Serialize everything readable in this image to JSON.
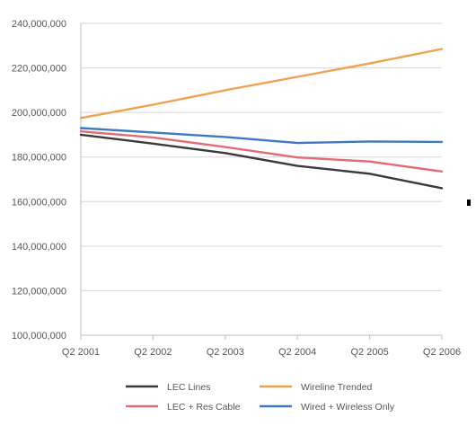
{
  "chart_data": {
    "type": "line",
    "title": "",
    "xlabel": "",
    "ylabel": "",
    "categories": [
      "Q2 2001",
      "Q2 2002",
      "Q2 2003",
      "Q2 2004",
      "Q2 2005",
      "Q2 2006"
    ],
    "ylim": [
      100000000,
      240000000
    ],
    "yticks": [
      {
        "value": 100000000,
        "label": "100,000,000"
      },
      {
        "value": 120000000,
        "label": "120,000,000"
      },
      {
        "value": 140000000,
        "label": "140,000,000"
      },
      {
        "value": 160000000,
        "label": "160,000,000"
      },
      {
        "value": 180000000,
        "label": "180,000,000"
      },
      {
        "value": 200000000,
        "label": "200,000,000"
      },
      {
        "value": 220000000,
        "label": "220,000,000"
      },
      {
        "value": 240000000,
        "label": "240,000,000"
      }
    ],
    "grid": "horizontal",
    "legend_position": "bottom",
    "series": [
      {
        "name": "LEC Lines",
        "color": "#3a3a3a",
        "values": [
          190000000,
          186000000,
          181800000,
          176000000,
          172500000,
          166000000
        ]
      },
      {
        "name": "Wireline Trended",
        "color": "#f0a14e",
        "values": [
          197500000,
          203500000,
          210000000,
          216000000,
          222000000,
          228500000
        ]
      },
      {
        "name": "LEC + Res Cable",
        "color": "#e06b73",
        "values": [
          191500000,
          188800000,
          184500000,
          179800000,
          178000000,
          173500000
        ]
      },
      {
        "name": "Wired + Wireless Only",
        "color": "#3b79c2",
        "values": [
          193000000,
          191000000,
          189000000,
          186300000,
          187000000,
          186800000
        ]
      }
    ]
  }
}
